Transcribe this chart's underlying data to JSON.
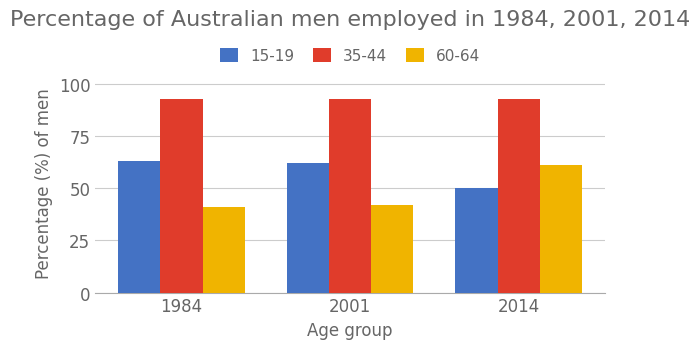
{
  "title": "Percentage of Australian men employed in 1984, 2001, 2014",
  "xlabel": "Age group",
  "ylabel": "Percentage (%) of men",
  "years": [
    "1984",
    "2001",
    "2014"
  ],
  "age_groups": [
    "15-19",
    "35-44",
    "60-64"
  ],
  "values": {
    "15-19": [
      63,
      62,
      50
    ],
    "35-44": [
      93,
      93,
      93
    ],
    "60-64": [
      41,
      42,
      61
    ]
  },
  "colors": {
    "15-19": "#4472C4",
    "35-44": "#E03C2B",
    "60-64": "#F0B400"
  },
  "ylim": [
    0,
    105
  ],
  "yticks": [
    0,
    25,
    50,
    75,
    100
  ],
  "bar_width": 0.25,
  "title_fontsize": 16,
  "label_fontsize": 12,
  "tick_fontsize": 12,
  "legend_fontsize": 11,
  "background_color": "#ffffff",
  "grid_color": "#cccccc"
}
